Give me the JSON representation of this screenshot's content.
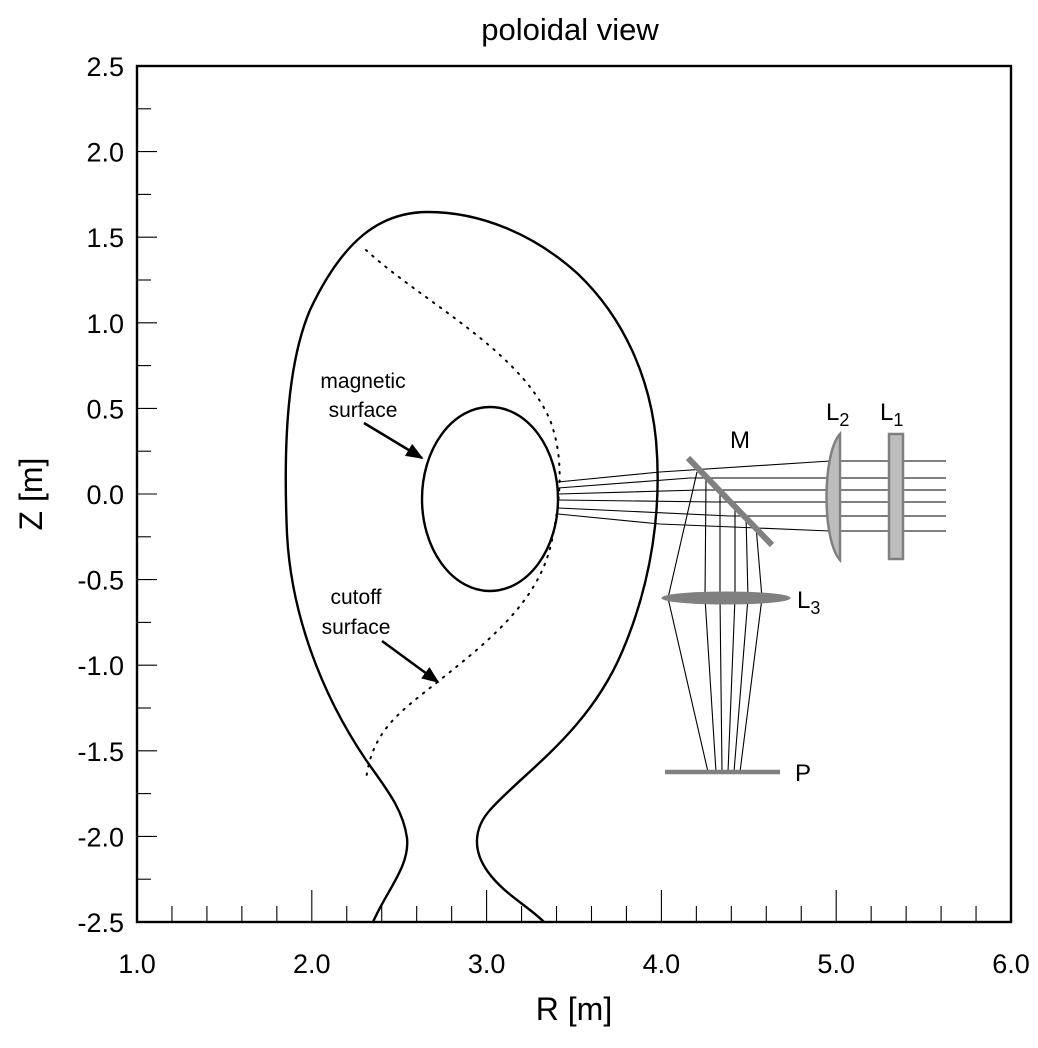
{
  "title": "poloidal view",
  "x_axis": {
    "label": "R [m]",
    "ticks": [
      "1.0",
      "2.0",
      "3.0",
      "4.0",
      "5.0",
      "6.0"
    ]
  },
  "y_axis": {
    "label": "Z [m]",
    "ticks": [
      "2.5",
      "2.0",
      "1.5",
      "1.0",
      "0.5",
      "0.0",
      "-0.5",
      "-1.0",
      "-1.5",
      "-2.0",
      "-2.5"
    ]
  },
  "annotations": {
    "magnetic_line1": "magnetic",
    "magnetic_line2": "surface",
    "cutoff_line1": "cutoff",
    "cutoff_line2": "surface"
  },
  "optics": {
    "mirror": "M",
    "lens2_main": "L",
    "lens2_sub": "2",
    "lens1_main": "L",
    "lens1_sub": "1",
    "lens3_main": "L",
    "lens3_sub": "3",
    "plane": "P"
  },
  "colors": {
    "optic_fill": "#bdbdbd",
    "optic_dark": "#808080",
    "line": "#000000"
  },
  "chart_data": {
    "type": "diagram",
    "xlim": [
      1.0,
      6.0
    ],
    "ylim": [
      -2.5,
      2.5
    ],
    "magnetic_surface": {
      "center": [
        3.0,
        -0.04
      ],
      "semi_axes_R_Z": [
        0.2,
        0.53
      ]
    },
    "ray_count": 6
  }
}
